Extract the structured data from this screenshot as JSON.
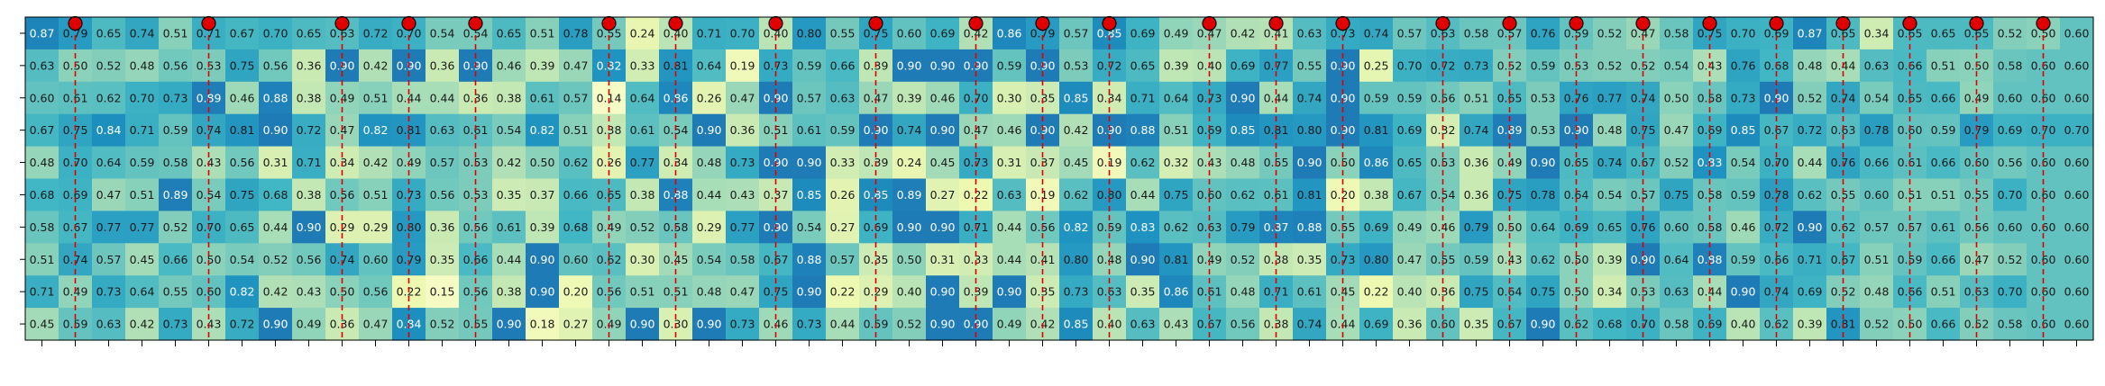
{
  "chart_data": {
    "type": "heatmap",
    "colormap": "YlGnBu",
    "vmin": 0.14,
    "vmax": 0.9,
    "n_rows": 10,
    "n_cols": 62,
    "x_tick_labels": "none",
    "y_tick_labels": "none",
    "markers": {
      "style": "red dot with red dashed vertical line",
      "color": "#e00000",
      "columns": [
        1,
        5,
        9,
        11,
        13,
        17,
        19,
        22,
        25,
        28,
        30,
        32,
        35,
        37,
        39,
        42,
        44,
        46,
        48,
        50,
        52,
        54,
        56,
        58,
        60
      ]
    },
    "values": [
      [
        0.87,
        0.79,
        0.65,
        0.74,
        0.51,
        0.71,
        0.67,
        0.7,
        0.65,
        0.63,
        0.72,
        0.7,
        0.54,
        0.54,
        0.65,
        0.51,
        0.78,
        0.55,
        0.24,
        0.4,
        0.71,
        0.7,
        0.4,
        0.8,
        0.55,
        0.75,
        0.6,
        0.69,
        0.42,
        0.86,
        0.79,
        0.57,
        0.85,
        0.69,
        0.49,
        0.47,
        0.42,
        0.41,
        0.63,
        0.73,
        0.74,
        0.57,
        0.63,
        0.58,
        0.57,
        0.76,
        0.59,
        0.52,
        0.47,
        0.58,
        0.75,
        0.7,
        0.69,
        0.87,
        0.65,
        0.34,
        0.65,
        0.65,
        0.65,
        0.52,
        0.5,
        0.6
      ],
      [
        0.63,
        0.5,
        0.52,
        0.48,
        0.56,
        0.53,
        0.75,
        0.56,
        0.36,
        0.9,
        0.42,
        0.9,
        0.36,
        0.9,
        0.46,
        0.39,
        0.47,
        0.82,
        0.33,
        0.81,
        0.64,
        0.19,
        0.73,
        0.59,
        0.66,
        0.39,
        0.9,
        0.9,
        0.9,
        0.59,
        0.9,
        0.53,
        0.72,
        0.65,
        0.39,
        0.4,
        0.69,
        0.77,
        0.55,
        0.9,
        0.25,
        0.7,
        0.72,
        0.73,
        0.52,
        0.59,
        0.53,
        0.52,
        0.52,
        0.54,
        0.43,
        0.76,
        0.68,
        0.48,
        0.44,
        0.63,
        0.66,
        0.51,
        0.5,
        0.58,
        0.6,
        0.6
      ],
      [
        0.6,
        0.61,
        0.62,
        0.7,
        0.73,
        0.89,
        0.46,
        0.88,
        0.38,
        0.49,
        0.51,
        0.44,
        0.44,
        0.36,
        0.38,
        0.61,
        0.57,
        0.14,
        0.64,
        0.86,
        0.26,
        0.47,
        0.9,
        0.57,
        0.63,
        0.47,
        0.39,
        0.46,
        0.7,
        0.3,
        0.35,
        0.85,
        0.34,
        0.71,
        0.64,
        0.73,
        0.9,
        0.44,
        0.74,
        0.9,
        0.59,
        0.59,
        0.56,
        0.51,
        0.65,
        0.53,
        0.76,
        0.77,
        0.74,
        0.5,
        0.58,
        0.73,
        0.9,
        0.52,
        0.74,
        0.54,
        0.65,
        0.66,
        0.49,
        0.6,
        0.6,
        0.6
      ],
      [
        0.67,
        0.75,
        0.84,
        0.71,
        0.59,
        0.74,
        0.81,
        0.9,
        0.72,
        0.47,
        0.82,
        0.81,
        0.63,
        0.61,
        0.54,
        0.82,
        0.51,
        0.38,
        0.61,
        0.54,
        0.9,
        0.36,
        0.51,
        0.61,
        0.59,
        0.9,
        0.74,
        0.9,
        0.47,
        0.46,
        0.9,
        0.42,
        0.9,
        0.88,
        0.51,
        0.69,
        0.85,
        0.81,
        0.8,
        0.9,
        0.81,
        0.69,
        0.32,
        0.74,
        0.89,
        0.53,
        0.9,
        0.48,
        0.75,
        0.47,
        0.69,
        0.85,
        0.67,
        0.72,
        0.63,
        0.78,
        0.6,
        0.59,
        0.79,
        0.69,
        0.7,
        0.7
      ],
      [
        0.48,
        0.7,
        0.64,
        0.59,
        0.58,
        0.43,
        0.56,
        0.31,
        0.71,
        0.34,
        0.42,
        0.49,
        0.57,
        0.53,
        0.42,
        0.5,
        0.62,
        0.26,
        0.77,
        0.34,
        0.48,
        0.73,
        0.9,
        0.9,
        0.33,
        0.39,
        0.24,
        0.45,
        0.73,
        0.31,
        0.37,
        0.45,
        0.19,
        0.62,
        0.32,
        0.43,
        0.48,
        0.55,
        0.9,
        0.5,
        0.86,
        0.65,
        0.53,
        0.36,
        0.49,
        0.9,
        0.65,
        0.74,
        0.67,
        0.52,
        0.83,
        0.54,
        0.7,
        0.44,
        0.76,
        0.66,
        0.61,
        0.66,
        0.6,
        0.56,
        0.6,
        0.6
      ],
      [
        0.68,
        0.69,
        0.47,
        0.51,
        0.89,
        0.54,
        0.75,
        0.68,
        0.38,
        0.56,
        0.51,
        0.73,
        0.56,
        0.53,
        0.35,
        0.37,
        0.66,
        0.65,
        0.38,
        0.88,
        0.44,
        0.43,
        0.37,
        0.85,
        0.26,
        0.85,
        0.89,
        0.27,
        0.22,
        0.63,
        0.19,
        0.62,
        0.8,
        0.44,
        0.75,
        0.6,
        0.62,
        0.61,
        0.81,
        0.2,
        0.38,
        0.67,
        0.54,
        0.36,
        0.75,
        0.78,
        0.64,
        0.54,
        0.57,
        0.75,
        0.58,
        0.59,
        0.78,
        0.62,
        0.55,
        0.6,
        0.51,
        0.51,
        0.55,
        0.7,
        0.6,
        0.6
      ],
      [
        0.58,
        0.67,
        0.77,
        0.77,
        0.52,
        0.7,
        0.65,
        0.44,
        0.9,
        0.29,
        0.29,
        0.8,
        0.36,
        0.56,
        0.61,
        0.39,
        0.68,
        0.49,
        0.52,
        0.58,
        0.29,
        0.77,
        0.9,
        0.54,
        0.27,
        0.69,
        0.9,
        0.9,
        0.71,
        0.44,
        0.56,
        0.82,
        0.59,
        0.83,
        0.62,
        0.63,
        0.79,
        0.87,
        0.88,
        0.55,
        0.69,
        0.49,
        0.46,
        0.79,
        0.5,
        0.64,
        0.69,
        0.65,
        0.76,
        0.6,
        0.58,
        0.46,
        0.72,
        0.9,
        0.62,
        0.57,
        0.57,
        0.61,
        0.56,
        0.6,
        0.6,
        0.6
      ],
      [
        0.51,
        0.74,
        0.57,
        0.45,
        0.66,
        0.5,
        0.54,
        0.52,
        0.56,
        0.74,
        0.6,
        0.79,
        0.35,
        0.66,
        0.44,
        0.9,
        0.6,
        0.62,
        0.3,
        0.45,
        0.54,
        0.58,
        0.67,
        0.88,
        0.57,
        0.35,
        0.5,
        0.31,
        0.33,
        0.44,
        0.41,
        0.8,
        0.48,
        0.9,
        0.81,
        0.49,
        0.52,
        0.38,
        0.35,
        0.73,
        0.8,
        0.47,
        0.55,
        0.59,
        0.43,
        0.62,
        0.5,
        0.39,
        0.9,
        0.64,
        0.88,
        0.59,
        0.66,
        0.71,
        0.67,
        0.51,
        0.59,
        0.66,
        0.47,
        0.52,
        0.6,
        0.6
      ],
      [
        0.71,
        0.49,
        0.73,
        0.64,
        0.55,
        0.6,
        0.82,
        0.42,
        0.43,
        0.5,
        0.56,
        0.22,
        0.15,
        0.56,
        0.38,
        0.9,
        0.2,
        0.56,
        0.51,
        0.51,
        0.48,
        0.47,
        0.75,
        0.9,
        0.22,
        0.29,
        0.4,
        0.9,
        0.39,
        0.9,
        0.35,
        0.73,
        0.63,
        0.35,
        0.86,
        0.61,
        0.48,
        0.71,
        0.61,
        0.45,
        0.22,
        0.4,
        0.36,
        0.75,
        0.64,
        0.75,
        0.5,
        0.34,
        0.53,
        0.63,
        0.44,
        0.9,
        0.74,
        0.69,
        0.52,
        0.48,
        0.66,
        0.51,
        0.63,
        0.7,
        0.6,
        0.6
      ],
      [
        0.45,
        0.59,
        0.63,
        0.42,
        0.73,
        0.43,
        0.72,
        0.9,
        0.49,
        0.36,
        0.47,
        0.84,
        0.52,
        0.55,
        0.9,
        0.18,
        0.27,
        0.49,
        0.9,
        0.3,
        0.9,
        0.73,
        0.46,
        0.73,
        0.44,
        0.59,
        0.52,
        0.9,
        0.9,
        0.49,
        0.42,
        0.85,
        0.4,
        0.63,
        0.43,
        0.67,
        0.56,
        0.38,
        0.74,
        0.44,
        0.69,
        0.36,
        0.6,
        0.35,
        0.67,
        0.9,
        0.62,
        0.68,
        0.7,
        0.58,
        0.69,
        0.4,
        0.62,
        0.39,
        0.81,
        0.52,
        0.5,
        0.66,
        0.52,
        0.58,
        0.6,
        0.6
      ]
    ]
  }
}
